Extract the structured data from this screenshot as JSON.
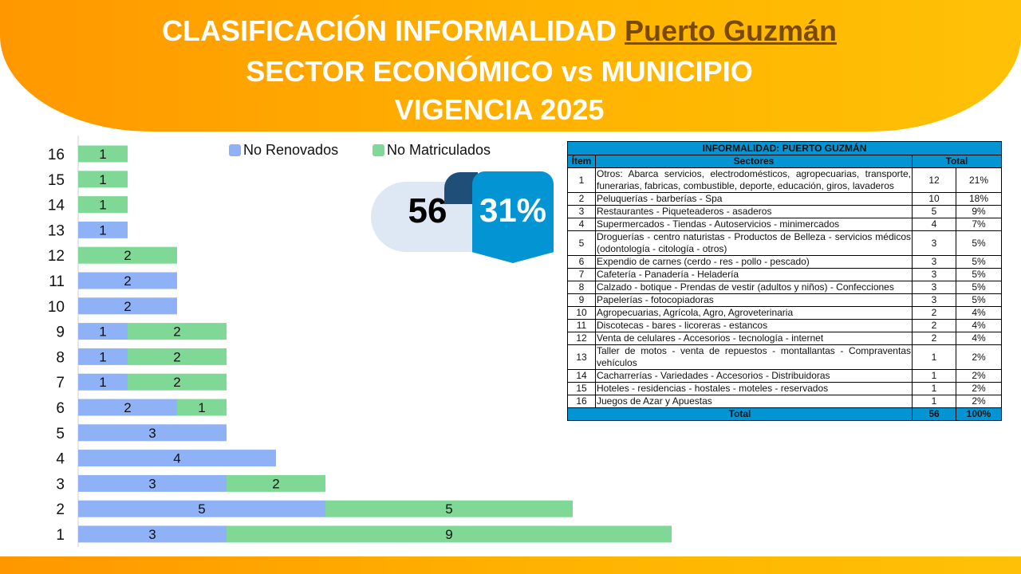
{
  "header": {
    "line1_prefix": "CLASIFICACIÓN INFORMALIDAD",
    "line1_highlight": "Puerto Guzmán",
    "line2": "SECTOR ECONÓMICO vs MUNICIPIO",
    "line3": "VIGENCIA 2025"
  },
  "kpi": {
    "total": "56",
    "percent": "31%"
  },
  "colors": {
    "no_renovados": "#8fb1f5",
    "no_matriculados": "#7fd896",
    "table_header": "#0395d3",
    "banner": "#ffa000"
  },
  "chart_data": {
    "type": "bar",
    "orientation": "horizontal",
    "stacked": true,
    "categories": [
      "1",
      "2",
      "3",
      "4",
      "5",
      "6",
      "7",
      "8",
      "9",
      "10",
      "11",
      "12",
      "13",
      "14",
      "15",
      "16"
    ],
    "series": [
      {
        "name": "No Renovados",
        "values": [
          3,
          5,
          3,
          4,
          3,
          2,
          1,
          1,
          1,
          2,
          2,
          0,
          1,
          0,
          0,
          0
        ]
      },
      {
        "name": "No Matriculados",
        "values": [
          9,
          5,
          2,
          0,
          0,
          1,
          2,
          2,
          2,
          0,
          0,
          2,
          0,
          1,
          1,
          1
        ]
      }
    ],
    "legend_position": "top",
    "data_labels": true
  },
  "table": {
    "title": "INFORMALIDAD: PUERTO GUZMÁN",
    "headers": {
      "item": "Ítem",
      "sectors": "Sectores",
      "total": "Total"
    },
    "rows": [
      {
        "item": "1",
        "sector": "Otros: Abarca servicios, electrodomésticos, agropecuarias, transporte, funerarias, fabricas, combustible, deporte, educación, giros, lavaderos",
        "count": "12",
        "pct": "21%"
      },
      {
        "item": "2",
        "sector": "Peluquerías - barberías - Spa",
        "count": "10",
        "pct": "18%"
      },
      {
        "item": "3",
        "sector": "Restaurantes - Piqueteaderos - asaderos",
        "count": "5",
        "pct": "9%"
      },
      {
        "item": "4",
        "sector": "Supermercados - Tiendas - Autoservicios - minimercados",
        "count": "4",
        "pct": "7%"
      },
      {
        "item": "5",
        "sector": "Droguerías - centro naturistas - Productos de Belleza - servicios médicos (odontología - citología - otros)",
        "count": "3",
        "pct": "5%"
      },
      {
        "item": "6",
        "sector": "Expendio de carnes (cerdo - res - pollo - pescado)",
        "count": "3",
        "pct": "5%"
      },
      {
        "item": "7",
        "sector": "Cafetería - Panadería - Heladería",
        "count": "3",
        "pct": "5%"
      },
      {
        "item": "8",
        "sector": "Calzado - botique - Prendas de vestir (adultos y niños) - Confecciones",
        "count": "3",
        "pct": "5%"
      },
      {
        "item": "9",
        "sector": "Papelerías - fotocopiadoras",
        "count": "3",
        "pct": "5%"
      },
      {
        "item": "10",
        "sector": "Agropecuarias, Agrícola, Agro, Agroveterinaria",
        "count": "2",
        "pct": "4%"
      },
      {
        "item": "11",
        "sector": "Discotecas - bares - licoreras - estancos",
        "count": "2",
        "pct": "4%"
      },
      {
        "item": "12",
        "sector": "Venta de celulares - Accesorios - tecnología - internet",
        "count": "2",
        "pct": "4%"
      },
      {
        "item": "13",
        "sector": "Taller de motos - venta de repuestos - montallantas - Compraventas vehículos",
        "count": "1",
        "pct": "2%"
      },
      {
        "item": "14",
        "sector": "Cacharrerías - Variedades - Accesorios - Distribuidoras",
        "count": "1",
        "pct": "2%"
      },
      {
        "item": "15",
        "sector": "Hoteles - residencias - hostales - moteles - reservados",
        "count": "1",
        "pct": "2%"
      },
      {
        "item": "16",
        "sector": "Juegos de Azar y Apuestas",
        "count": "1",
        "pct": "2%"
      }
    ],
    "total": {
      "label": "Total",
      "count": "56",
      "pct": "100%"
    }
  }
}
